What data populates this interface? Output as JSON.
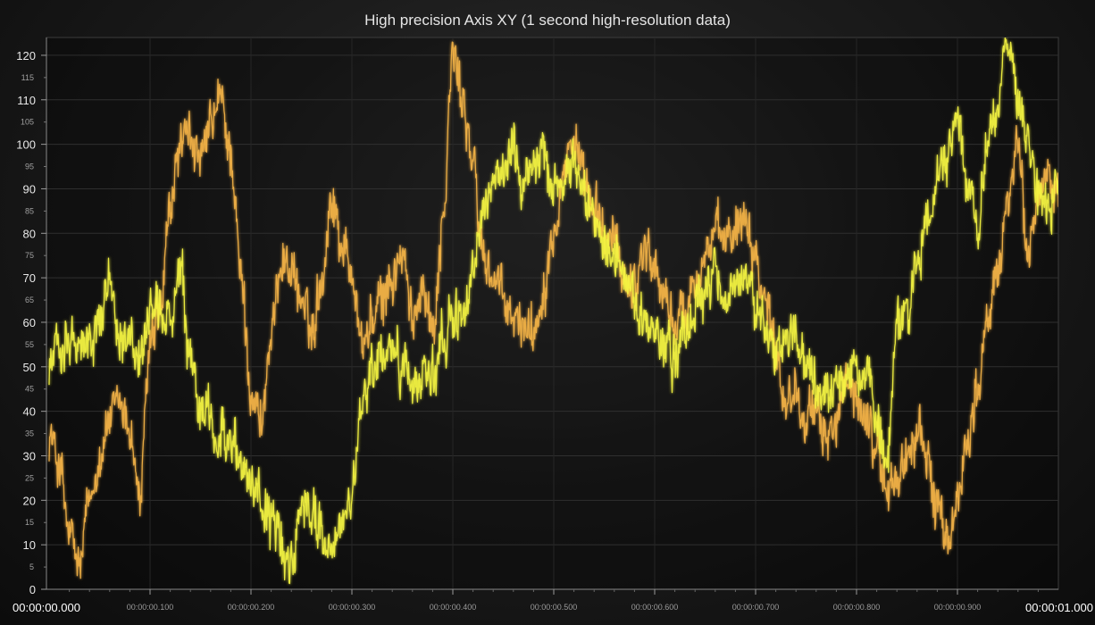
{
  "chart_data": {
    "type": "line",
    "title": "High precision Axis XY (1 second high-resolution data)",
    "xlabel": "",
    "ylabel": "",
    "xlim": [
      0,
      1
    ],
    "ylim": [
      0,
      124
    ],
    "grid": true,
    "y_major_ticks": [
      "0",
      "10",
      "20",
      "30",
      "40",
      "50",
      "60",
      "70",
      "80",
      "90",
      "100",
      "110",
      "120"
    ],
    "y_minor_ticks": [
      "5",
      "15",
      "25",
      "35",
      "45",
      "55",
      "65",
      "75",
      "85",
      "95",
      "105",
      "115"
    ],
    "x_edge_ticks": [
      "00:00:00.000",
      "00:00:01.000"
    ],
    "x_minor_ticks": [
      "00:00:00.100",
      "00:00:00.200",
      "00:00:00.300",
      "00:00:00.400",
      "00:00:00.500",
      "00:00:00.600",
      "00:00:00.700",
      "00:00:00.800",
      "00:00:00.900"
    ],
    "x": [
      0.0,
      0.01,
      0.02,
      0.03,
      0.04,
      0.05,
      0.06,
      0.07,
      0.08,
      0.09,
      0.1,
      0.11,
      0.12,
      0.13,
      0.14,
      0.15,
      0.16,
      0.17,
      0.18,
      0.19,
      0.2,
      0.21,
      0.22,
      0.23,
      0.24,
      0.25,
      0.26,
      0.27,
      0.28,
      0.29,
      0.3,
      0.31,
      0.32,
      0.33,
      0.34,
      0.35,
      0.36,
      0.37,
      0.38,
      0.39,
      0.4,
      0.41,
      0.42,
      0.43,
      0.44,
      0.45,
      0.46,
      0.47,
      0.48,
      0.49,
      0.5,
      0.51,
      0.52,
      0.53,
      0.54,
      0.55,
      0.56,
      0.57,
      0.58,
      0.59,
      0.6,
      0.61,
      0.62,
      0.63,
      0.64,
      0.65,
      0.66,
      0.67,
      0.68,
      0.69,
      0.7,
      0.71,
      0.72,
      0.73,
      0.74,
      0.75,
      0.76,
      0.77,
      0.78,
      0.79,
      0.8,
      0.81,
      0.82,
      0.83,
      0.84,
      0.85,
      0.86,
      0.87,
      0.88,
      0.89,
      0.9,
      0.91,
      0.92,
      0.93,
      0.94,
      0.95,
      0.96,
      0.97,
      0.98,
      0.99,
      1.0
    ],
    "series": [
      {
        "color": "#f5b447",
        "values": [
          35,
          28,
          12,
          5,
          20,
          30,
          38,
          42,
          36,
          20,
          55,
          62,
          85,
          100,
          102,
          95,
          104,
          110,
          98,
          70,
          45,
          38,
          55,
          75,
          72,
          65,
          58,
          70,
          88,
          78,
          72,
          55,
          60,
          65,
          70,
          75,
          60,
          70,
          58,
          82,
          120,
          110,
          95,
          75,
          70,
          65,
          60,
          60,
          58,
          68,
          82,
          95,
          102,
          90,
          85,
          80,
          78,
          70,
          68,
          78,
          72,
          65,
          60,
          62,
          70,
          75,
          80,
          78,
          82,
          85,
          75,
          65,
          55,
          42,
          45,
          40,
          38,
          35,
          38,
          45,
          42,
          38,
          32,
          22,
          25,
          30,
          35,
          30,
          18,
          10,
          20,
          35,
          45,
          60,
          70,
          90,
          98,
          75,
          88,
          95,
          90
        ]
      },
      {
        "color": "#f5f542",
        "values": [
          50,
          55,
          58,
          55,
          55,
          60,
          70,
          58,
          55,
          52,
          60,
          62,
          60,
          70,
          50,
          40,
          38,
          35,
          32,
          28,
          25,
          20,
          15,
          10,
          5,
          20,
          18,
          12,
          10,
          15,
          20,
          40,
          50,
          52,
          55,
          50,
          45,
          50,
          48,
          55,
          60,
          62,
          70,
          85,
          90,
          95,
          100,
          92,
          95,
          100,
          90,
          93,
          95,
          90,
          85,
          80,
          75,
          70,
          65,
          60,
          58,
          55,
          52,
          60,
          62,
          65,
          70,
          65,
          72,
          68,
          64,
          60,
          55,
          55,
          58,
          50,
          45,
          42,
          45,
          48,
          50,
          48,
          38,
          28,
          60,
          62,
          75,
          80,
          92,
          95,
          105,
          88,
          82,
          100,
          110,
          122,
          110,
          100,
          88,
          85,
          90
        ]
      }
    ]
  }
}
